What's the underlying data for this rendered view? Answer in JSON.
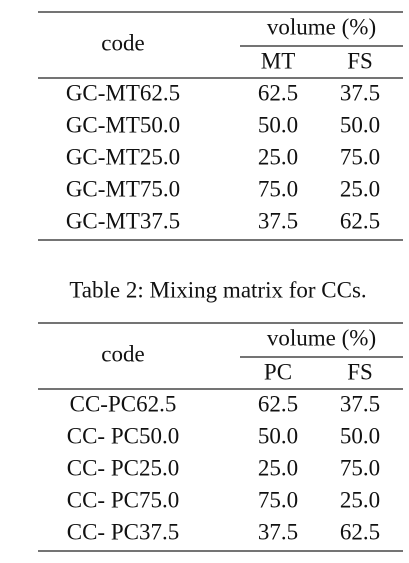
{
  "tables": [
    {
      "header": {
        "code": "code",
        "group": "volume (%)",
        "columns": [
          "MT",
          "FS"
        ]
      },
      "rows": [
        [
          "GC-MT62.5",
          "62.5",
          "37.5"
        ],
        [
          "GC-MT50.0",
          "50.0",
          "50.0"
        ],
        [
          "GC-MT25.0",
          "25.0",
          "75.0"
        ],
        [
          "GC-MT75.0",
          "75.0",
          "25.0"
        ],
        [
          "GC-MT37.5",
          "37.5",
          "62.5"
        ]
      ]
    },
    {
      "caption": "Table 2: Mixing matrix for CCs.",
      "header": {
        "code": "code",
        "group": "volume (%)",
        "columns": [
          "PC",
          "FS"
        ]
      },
      "rows": [
        [
          "CC-PC62.5",
          "62.5",
          "37.5"
        ],
        [
          "CC- PC50.0",
          "50.0",
          "50.0"
        ],
        [
          "CC- PC25.0",
          "25.0",
          "75.0"
        ],
        [
          "CC- PC75.0",
          "75.0",
          "25.0"
        ],
        [
          "CC- PC37.5",
          "37.5",
          "62.5"
        ]
      ]
    }
  ]
}
